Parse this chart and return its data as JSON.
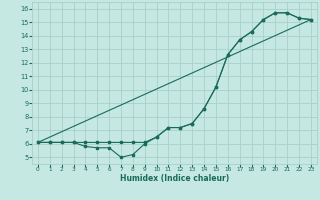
{
  "title": "",
  "xlabel": "Humidex (Indice chaleur)",
  "xlim": [
    -0.5,
    23.5
  ],
  "ylim": [
    4.5,
    16.5
  ],
  "xticks": [
    0,
    1,
    2,
    3,
    4,
    5,
    6,
    7,
    8,
    9,
    10,
    11,
    12,
    13,
    14,
    15,
    16,
    17,
    18,
    19,
    20,
    21,
    22,
    23
  ],
  "yticks": [
    5,
    6,
    7,
    8,
    9,
    10,
    11,
    12,
    13,
    14,
    15,
    16
  ],
  "background_color": "#c5e8e2",
  "grid_color": "#a8cfc8",
  "line_color": "#1a6b5a",
  "line1_x": [
    0,
    1,
    2,
    3,
    4,
    5,
    6,
    7,
    8,
    9,
    10,
    11,
    12,
    13,
    14,
    15,
    16,
    17,
    18,
    19,
    20,
    21,
    22,
    23
  ],
  "line1_y": [
    6.1,
    6.1,
    6.1,
    6.1,
    5.8,
    5.7,
    5.7,
    5.0,
    5.2,
    6.0,
    6.5,
    7.2,
    7.2,
    7.5,
    8.6,
    10.2,
    12.6,
    13.7,
    14.3,
    15.2,
    15.7,
    15.7,
    15.3,
    15.2
  ],
  "line2_x": [
    0,
    1,
    2,
    3,
    4,
    5,
    6,
    7,
    8,
    9,
    10,
    11,
    12,
    13,
    14,
    15,
    16,
    17,
    18,
    19,
    20,
    21,
    22,
    23
  ],
  "line2_y": [
    6.1,
    6.1,
    6.1,
    6.1,
    6.1,
    6.1,
    6.1,
    6.1,
    6.1,
    6.1,
    6.5,
    7.2,
    7.2,
    7.5,
    8.6,
    10.2,
    12.6,
    13.7,
    14.3,
    15.2,
    15.7,
    15.7,
    15.3,
    15.2
  ],
  "line3_x": [
    0,
    23
  ],
  "line3_y": [
    6.1,
    15.2
  ]
}
